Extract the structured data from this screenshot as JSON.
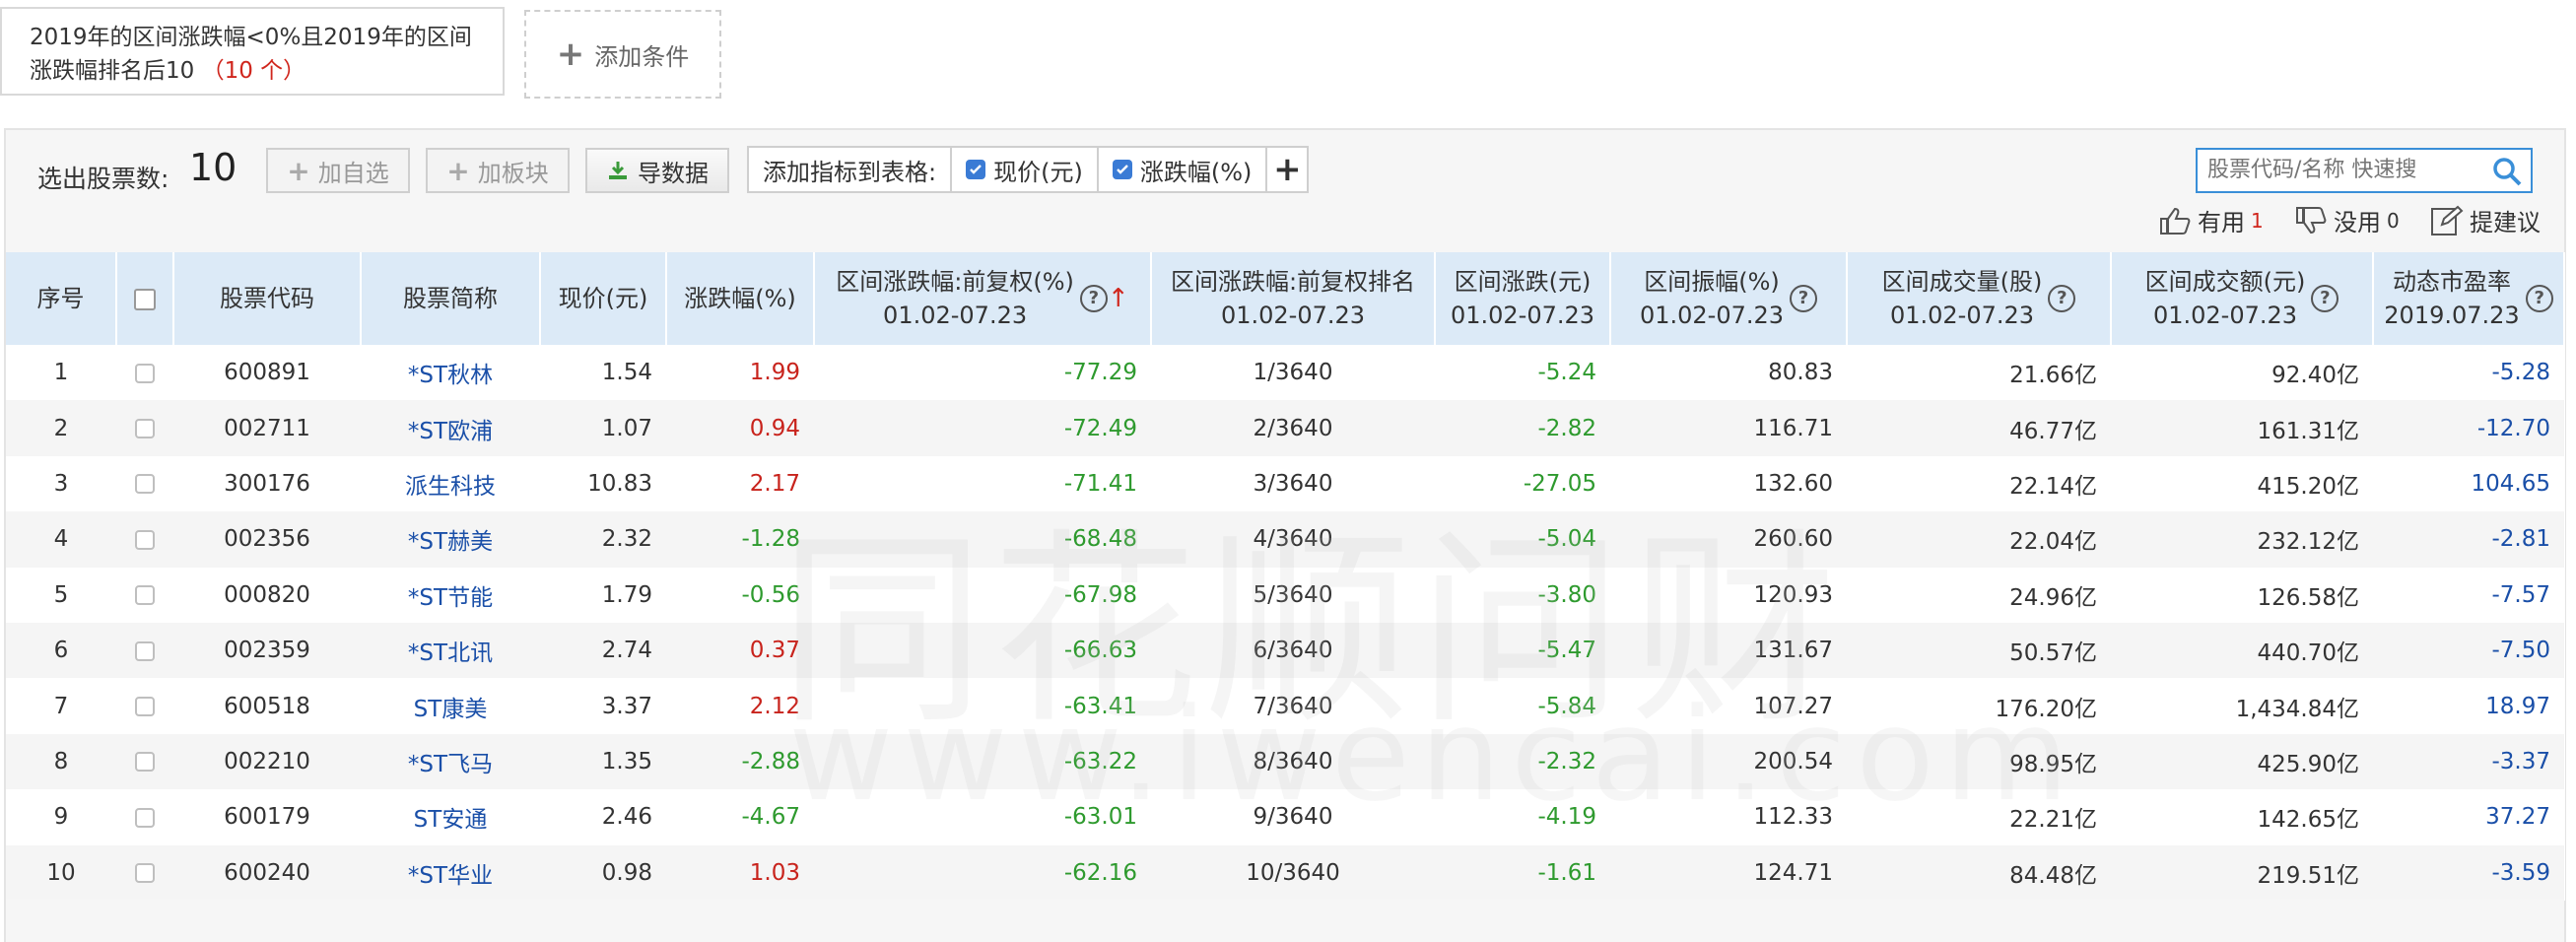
{
  "conditions": {
    "text": "2019年的区间涨跌幅<0%且2019年的区间涨跌幅排名后10",
    "count": "（10 个）",
    "add_label": "添加条件"
  },
  "toolbar": {
    "selected_label": "选出股票数:",
    "selected_count": "10",
    "add_watch": "加自选",
    "add_block": "加板块",
    "export": "导数据",
    "indicator_label": "添加指标到表格:",
    "indicators": [
      {
        "label": "现价(元)",
        "checked": true
      },
      {
        "label": "涨跌幅(%)",
        "checked": true
      }
    ],
    "search_placeholder": "股票代码/名称 快速搜",
    "useful_label": "有用",
    "useful_count": "1",
    "useless_label": "没用",
    "useless_count": "0",
    "suggest_label": "提建议"
  },
  "headers": {
    "seq": "序号",
    "code": "股票代码",
    "name": "股票简称",
    "price": "现价(元)",
    "chg": "涨跌幅(%)",
    "range_chg": "区间涨跌幅:前复权(%)",
    "range_chg_date": "01.02-07.23",
    "rank": "区间涨跌幅:前复权排名",
    "rank_date": "01.02-07.23",
    "range_diff": "区间涨跌(元)",
    "range_diff_date": "01.02-07.23",
    "amplitude": "区间振幅(%)",
    "amplitude_date": "01.02-07.23",
    "volume": "区间成交量(股)",
    "volume_date": "01.02-07.23",
    "turnover": "区间成交额(元)",
    "turnover_date": "01.02-07.23",
    "pe": "动态市盈率",
    "pe_date": "2019.07.23"
  },
  "rows": [
    {
      "seq": "1",
      "code": "600891",
      "name": "*ST秋林",
      "price": "1.54",
      "chg": "1.99",
      "range_chg": "-77.29",
      "rank": "1/3640",
      "range_diff": "-5.24",
      "amplitude": "80.83",
      "volume": "21.66亿",
      "turnover": "92.40亿",
      "pe": "-5.28"
    },
    {
      "seq": "2",
      "code": "002711",
      "name": "*ST欧浦",
      "price": "1.07",
      "chg": "0.94",
      "range_chg": "-72.49",
      "rank": "2/3640",
      "range_diff": "-2.82",
      "amplitude": "116.71",
      "volume": "46.77亿",
      "turnover": "161.31亿",
      "pe": "-12.70"
    },
    {
      "seq": "3",
      "code": "300176",
      "name": "派生科技",
      "price": "10.83",
      "chg": "2.17",
      "range_chg": "-71.41",
      "rank": "3/3640",
      "range_diff": "-27.05",
      "amplitude": "132.60",
      "volume": "22.14亿",
      "turnover": "415.20亿",
      "pe": "104.65"
    },
    {
      "seq": "4",
      "code": "002356",
      "name": "*ST赫美",
      "price": "2.32",
      "chg": "-1.28",
      "range_chg": "-68.48",
      "rank": "4/3640",
      "range_diff": "-5.04",
      "amplitude": "260.60",
      "volume": "22.04亿",
      "turnover": "232.12亿",
      "pe": "-2.81"
    },
    {
      "seq": "5",
      "code": "000820",
      "name": "*ST节能",
      "price": "1.79",
      "chg": "-0.56",
      "range_chg": "-67.98",
      "rank": "5/3640",
      "range_diff": "-3.80",
      "amplitude": "120.93",
      "volume": "24.96亿",
      "turnover": "126.58亿",
      "pe": "-7.57"
    },
    {
      "seq": "6",
      "code": "002359",
      "name": "*ST北讯",
      "price": "2.74",
      "chg": "0.37",
      "range_chg": "-66.63",
      "rank": "6/3640",
      "range_diff": "-5.47",
      "amplitude": "131.67",
      "volume": "50.57亿",
      "turnover": "440.70亿",
      "pe": "-7.50"
    },
    {
      "seq": "7",
      "code": "600518",
      "name": "ST康美",
      "price": "3.37",
      "chg": "2.12",
      "range_chg": "-63.41",
      "rank": "7/3640",
      "range_diff": "-5.84",
      "amplitude": "107.27",
      "volume": "176.20亿",
      "turnover": "1,434.84亿",
      "pe": "18.97"
    },
    {
      "seq": "8",
      "code": "002210",
      "name": "*ST飞马",
      "price": "1.35",
      "chg": "-2.88",
      "range_chg": "-63.22",
      "rank": "8/3640",
      "range_diff": "-2.32",
      "amplitude": "200.54",
      "volume": "98.95亿",
      "turnover": "425.90亿",
      "pe": "-3.37"
    },
    {
      "seq": "9",
      "code": "600179",
      "name": "ST安通",
      "price": "2.46",
      "chg": "-4.67",
      "range_chg": "-63.01",
      "rank": "9/3640",
      "range_diff": "-4.19",
      "amplitude": "112.33",
      "volume": "22.21亿",
      "turnover": "142.65亿",
      "pe": "37.27"
    },
    {
      "seq": "10",
      "code": "600240",
      "name": "*ST华业",
      "price": "0.98",
      "chg": "1.03",
      "range_chg": "-62.16",
      "rank": "10/3640",
      "range_diff": "-1.61",
      "amplitude": "124.71",
      "volume": "84.48亿",
      "turnover": "219.51亿",
      "pe": "-3.59"
    }
  ],
  "watermark": {
    "line1": "同花顺问财",
    "line2": "www.iwencai.com"
  },
  "colors": {
    "up": "#c8231c",
    "down": "#2e9a2e",
    "link": "#1a4fa8",
    "header_bg": "#dceaf7"
  }
}
